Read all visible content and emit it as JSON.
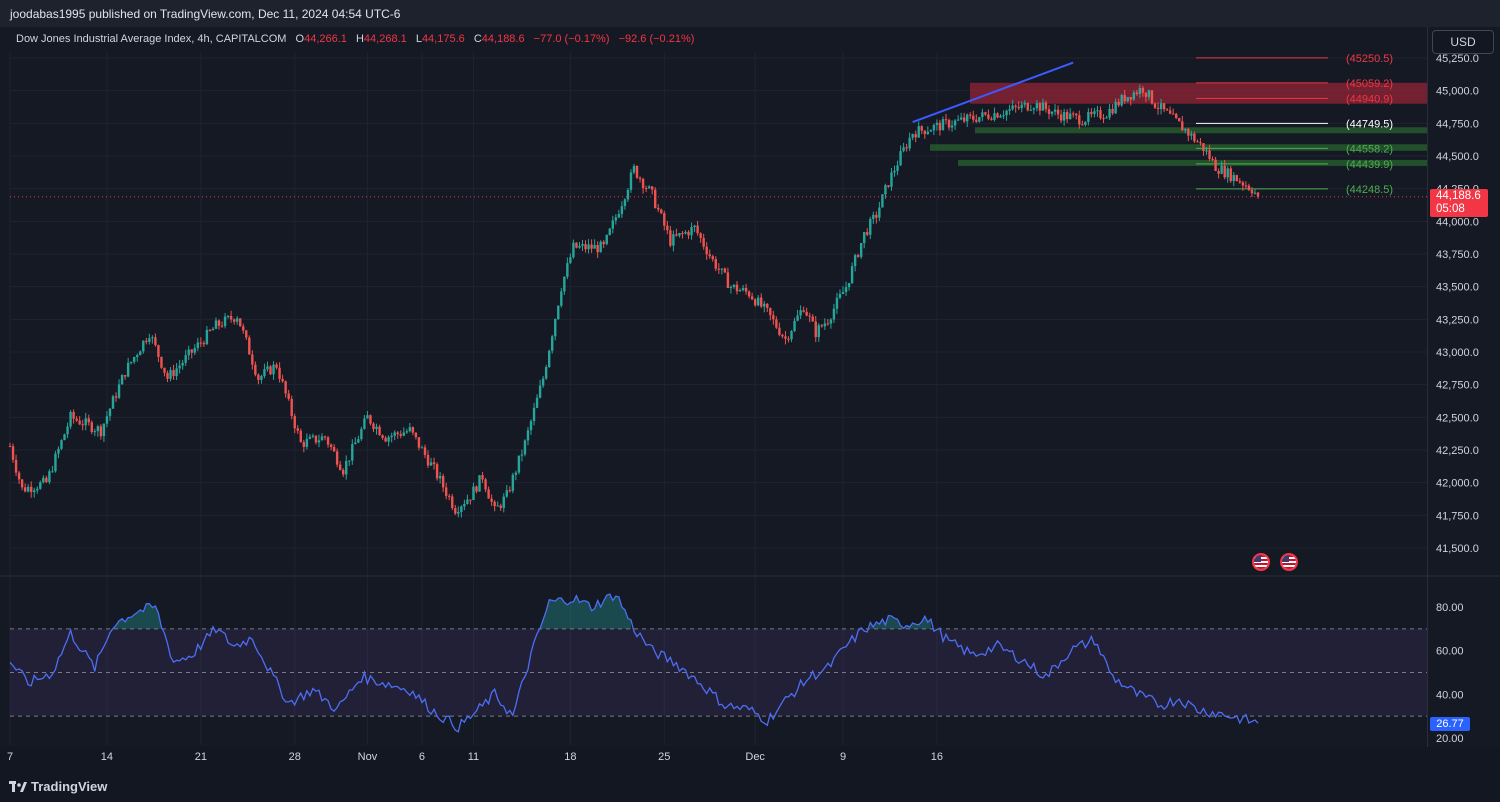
{
  "header": {
    "publish_text": "joodabas1995 published on TradingView.com, Dec 11, 2024 04:54 UTC-6"
  },
  "legend": {
    "symbol": "Dow Jones Industrial Average Index, 4h, CAPITALCOM",
    "o_label": "O",
    "o_value": "44,266.1",
    "h_label": "H",
    "h_value": "44,268.1",
    "l_label": "L",
    "l_value": "44,175.6",
    "c_label": "C",
    "c_value": "44,188.6",
    "change": "−77.0 (−0.17%)",
    "extra": "−92.6 (−0.21%)"
  },
  "currency_button": "USD",
  "price_tag": {
    "price": "44,188.6",
    "countdown": "05:08"
  },
  "rsi_tag": "26.77",
  "footer": {
    "brand": "TradingView"
  },
  "colors": {
    "up": "#26a69a",
    "down": "#ef5350",
    "rsi_line": "#4c6ef5",
    "trend_line": "#3d5afe",
    "resistance_zone": "#b2243a",
    "support_zone": "#2e7d32"
  },
  "events": [
    "us-flag-icon",
    "us-flag-icon"
  ],
  "chart_data": [
    {
      "type": "candlestick",
      "title": "Dow Jones Industrial Average Index, 4h, CAPITALCOM",
      "xlabel": "",
      "ylabel": "",
      "x_ticks": [
        "7",
        "14",
        "21",
        "28",
        "Nov",
        "6",
        "11",
        "18",
        "25",
        "Dec",
        "9",
        "16"
      ],
      "y_ticks": [
        "41,500.0",
        "41,750.0",
        "42,000.0",
        "42,250.0",
        "42,500.0",
        "42,750.0",
        "43,000.0",
        "43,250.0",
        "43,500.0",
        "43,750.0",
        "44,000.0",
        "44,250.0",
        "44,500.0",
        "44,750.0",
        "45,000.0",
        "45,250.0"
      ],
      "ylim": [
        41375,
        45275
      ],
      "anchors": [
        [
          0,
          42280
        ],
        [
          4,
          41950
        ],
        [
          12,
          42000
        ],
        [
          20,
          42500
        ],
        [
          30,
          42400
        ],
        [
          38,
          42850
        ],
        [
          46,
          43150
        ],
        [
          52,
          42800
        ],
        [
          60,
          43000
        ],
        [
          68,
          43200
        ],
        [
          75,
          43280
        ],
        [
          82,
          42800
        ],
        [
          88,
          42900
        ],
        [
          96,
          42300
        ],
        [
          104,
          42350
        ],
        [
          110,
          42100
        ],
        [
          118,
          42500
        ],
        [
          124,
          42350
        ],
        [
          132,
          42400
        ],
        [
          140,
          42100
        ],
        [
          147,
          41800
        ],
        [
          152,
          41900
        ],
        [
          156,
          42050
        ],
        [
          160,
          41780
        ],
        [
          164,
          41900
        ],
        [
          170,
          42300
        ],
        [
          176,
          42800
        ],
        [
          182,
          43500
        ],
        [
          186,
          43800
        ],
        [
          196,
          43800
        ],
        [
          202,
          44150
        ],
        [
          206,
          44400
        ],
        [
          212,
          44200
        ],
        [
          218,
          43850
        ],
        [
          226,
          43950
        ],
        [
          232,
          43700
        ],
        [
          238,
          43500
        ],
        [
          244,
          43450
        ],
        [
          250,
          43300
        ],
        [
          256,
          43100
        ],
        [
          262,
          43350
        ],
        [
          266,
          43150
        ],
        [
          270,
          43250
        ],
        [
          276,
          43500
        ],
        [
          282,
          43900
        ],
        [
          286,
          44050
        ],
        [
          290,
          44300
        ],
        [
          294,
          44500
        ],
        [
          298,
          44680
        ],
        [
          310,
          44750
        ],
        [
          320,
          44800
        ],
        [
          330,
          44850
        ],
        [
          338,
          44900
        ],
        [
          346,
          44820
        ],
        [
          354,
          44780
        ],
        [
          362,
          44830
        ],
        [
          368,
          44950
        ],
        [
          374,
          45020
        ],
        [
          378,
          44900
        ],
        [
          382,
          44820
        ],
        [
          388,
          44700
        ],
        [
          394,
          44560
        ],
        [
          398,
          44420
        ],
        [
          404,
          44340
        ],
        [
          410,
          44250
        ],
        [
          412,
          44188.6
        ]
      ],
      "last_close": 44188.6,
      "price_lines": [
        {
          "label": "(45250.5)",
          "value": 45250.5
        },
        {
          "label": "(45059.2)",
          "value": 45059.2
        },
        {
          "label": "(44940.9)",
          "value": 44940.9
        },
        {
          "label": "(44749.5)",
          "value": 44749.5
        },
        {
          "label": "(44558.2)",
          "value": 44558.2
        },
        {
          "label": "(44439.9)",
          "value": 44439.9
        },
        {
          "label": "(44248.5)",
          "value": 44248.5
        }
      ],
      "zones": [
        {
          "kind": "resistance",
          "from": 44900,
          "to": 45060
        },
        {
          "kind": "support",
          "from": 44680,
          "to": 44720
        },
        {
          "kind": "support",
          "from": 44540,
          "to": 44590
        },
        {
          "kind": "support",
          "from": 44430,
          "to": 44470
        }
      ],
      "trend_line": {
        "from": [
          44760,
          298
        ],
        "to": [
          45215,
          351
        ]
      }
    },
    {
      "type": "line",
      "title": "",
      "y_ticks": [
        "20.00",
        "40.00",
        "60.00",
        "80.00"
      ],
      "ylim": [
        18,
        88
      ],
      "levels": [
        30,
        50,
        70
      ],
      "anchors": [
        [
          0,
          55
        ],
        [
          6,
          45
        ],
        [
          14,
          50
        ],
        [
          20,
          68
        ],
        [
          28,
          52
        ],
        [
          34,
          72
        ],
        [
          42,
          78
        ],
        [
          48,
          80
        ],
        [
          54,
          55
        ],
        [
          60,
          58
        ],
        [
          68,
          70
        ],
        [
          74,
          62
        ],
        [
          80,
          66
        ],
        [
          86,
          50
        ],
        [
          92,
          36
        ],
        [
          100,
          42
        ],
        [
          108,
          33
        ],
        [
          116,
          48
        ],
        [
          124,
          45
        ],
        [
          132,
          42
        ],
        [
          140,
          32
        ],
        [
          148,
          25
        ],
        [
          154,
          32
        ],
        [
          160,
          40
        ],
        [
          166,
          30
        ],
        [
          172,
          58
        ],
        [
          178,
          82
        ],
        [
          186,
          84
        ],
        [
          192,
          80
        ],
        [
          200,
          86
        ],
        [
          206,
          70
        ],
        [
          212,
          60
        ],
        [
          220,
          54
        ],
        [
          228,
          45
        ],
        [
          236,
          35
        ],
        [
          244,
          33
        ],
        [
          250,
          28
        ],
        [
          258,
          40
        ],
        [
          264,
          48
        ],
        [
          270,
          52
        ],
        [
          276,
          62
        ],
        [
          282,
          70
        ],
        [
          290,
          74
        ],
        [
          296,
          72
        ],
        [
          302,
          75
        ],
        [
          310,
          64
        ],
        [
          318,
          58
        ],
        [
          326,
          62
        ],
        [
          334,
          56
        ],
        [
          342,
          48
        ],
        [
          350,
          60
        ],
        [
          358,
          65
        ],
        [
          364,
          48
        ],
        [
          372,
          40
        ],
        [
          380,
          35
        ],
        [
          386,
          38
        ],
        [
          392,
          33
        ],
        [
          400,
          31
        ],
        [
          406,
          29
        ],
        [
          412,
          26.77
        ]
      ],
      "last_value": 26.77
    }
  ]
}
